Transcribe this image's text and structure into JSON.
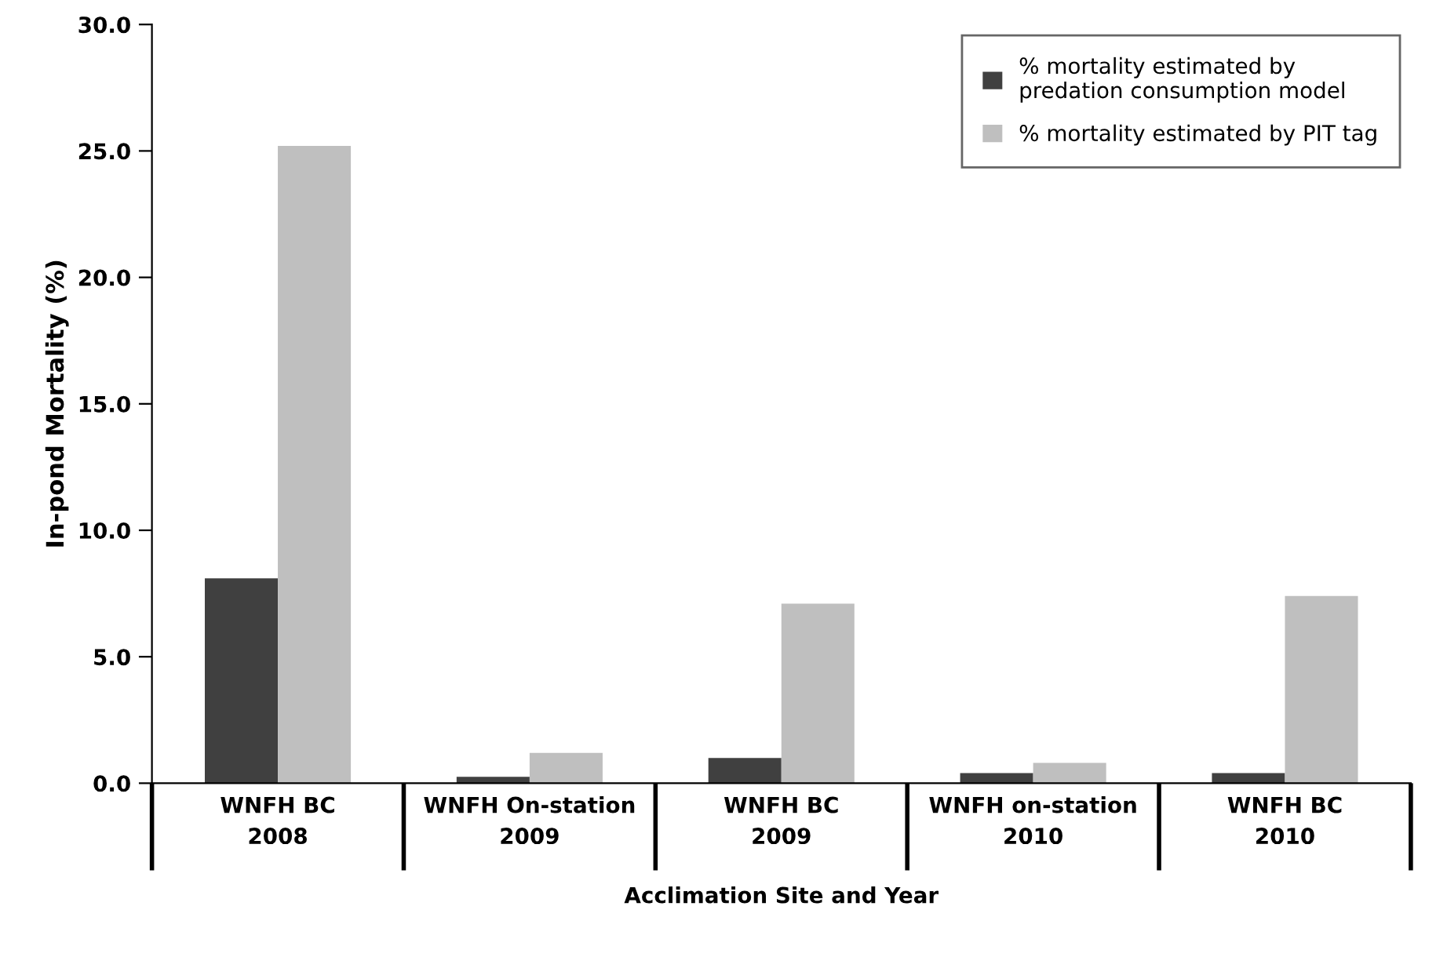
{
  "chart_data": {
    "type": "bar",
    "categories": [
      "WNFH BC\n2008",
      "WNFH On-station\n2009",
      "WNFH BC\n2009",
      "WNFH on-station\n2010",
      "WNFH BC\n2010"
    ],
    "series": [
      {
        "name": "% mortality estimated by\npredation consumption model",
        "color": "#404040",
        "values": [
          8.1,
          0.25,
          1.0,
          0.4,
          0.4
        ]
      },
      {
        "name": "% mortality estimated by PIT tag",
        "color": "#bfbfbf",
        "values": [
          25.2,
          1.2,
          7.1,
          0.8,
          7.4
        ]
      }
    ],
    "xlabel": "Acclimation Site and Year",
    "ylabel": "In-pond Mortality (%)",
    "ylim": [
      0,
      30
    ],
    "yticks": [
      {
        "value": 0,
        "label": "0.0"
      },
      {
        "value": 5,
        "label": "5.0"
      },
      {
        "value": 10,
        "label": "10.0"
      },
      {
        "value": 15,
        "label": "15.0"
      },
      {
        "value": 20,
        "label": "20.0"
      },
      {
        "value": 25,
        "label": "25.0"
      },
      {
        "value": 30,
        "label": "30.0"
      }
    ],
    "legend": "top right",
    "grid": false
  }
}
